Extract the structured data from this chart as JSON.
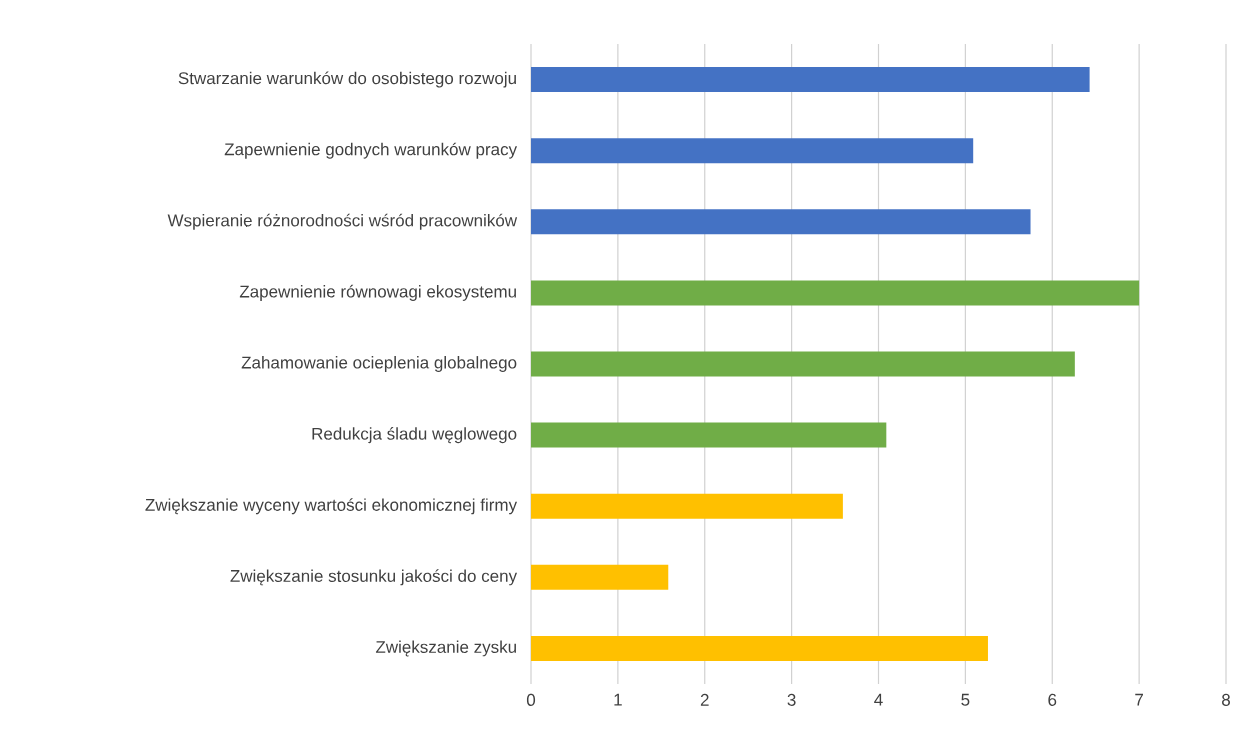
{
  "chart_data": {
    "type": "bar",
    "orientation": "horizontal",
    "categories": [
      "Stwarzanie warunków do osobistego rozwoju",
      "Zapewnienie godnych warunków pracy",
      "Wspieranie różnorodności wśród pracowników",
      "Zapewnienie równowagi ekosystemu",
      "Zahamowanie ocieplenia globalnego",
      "Redukcja śladu węglowego",
      "Zwiększanie wyceny wartości ekonomicznej firmy",
      "Zwiększanie stosunku jakości do ceny",
      "Zwiększanie zysku"
    ],
    "values": [
      6.43,
      5.09,
      5.75,
      7.0,
      6.26,
      4.09,
      3.59,
      1.58,
      5.26
    ],
    "colors": [
      "#4472c4",
      "#4472c4",
      "#4472c4",
      "#70ad47",
      "#70ad47",
      "#70ad47",
      "#ffc000",
      "#ffc000",
      "#ffc000"
    ],
    "xlim": [
      0,
      8
    ],
    "xticks": [
      0,
      1,
      2,
      3,
      4,
      5,
      6,
      7,
      8
    ],
    "grid": "x"
  }
}
